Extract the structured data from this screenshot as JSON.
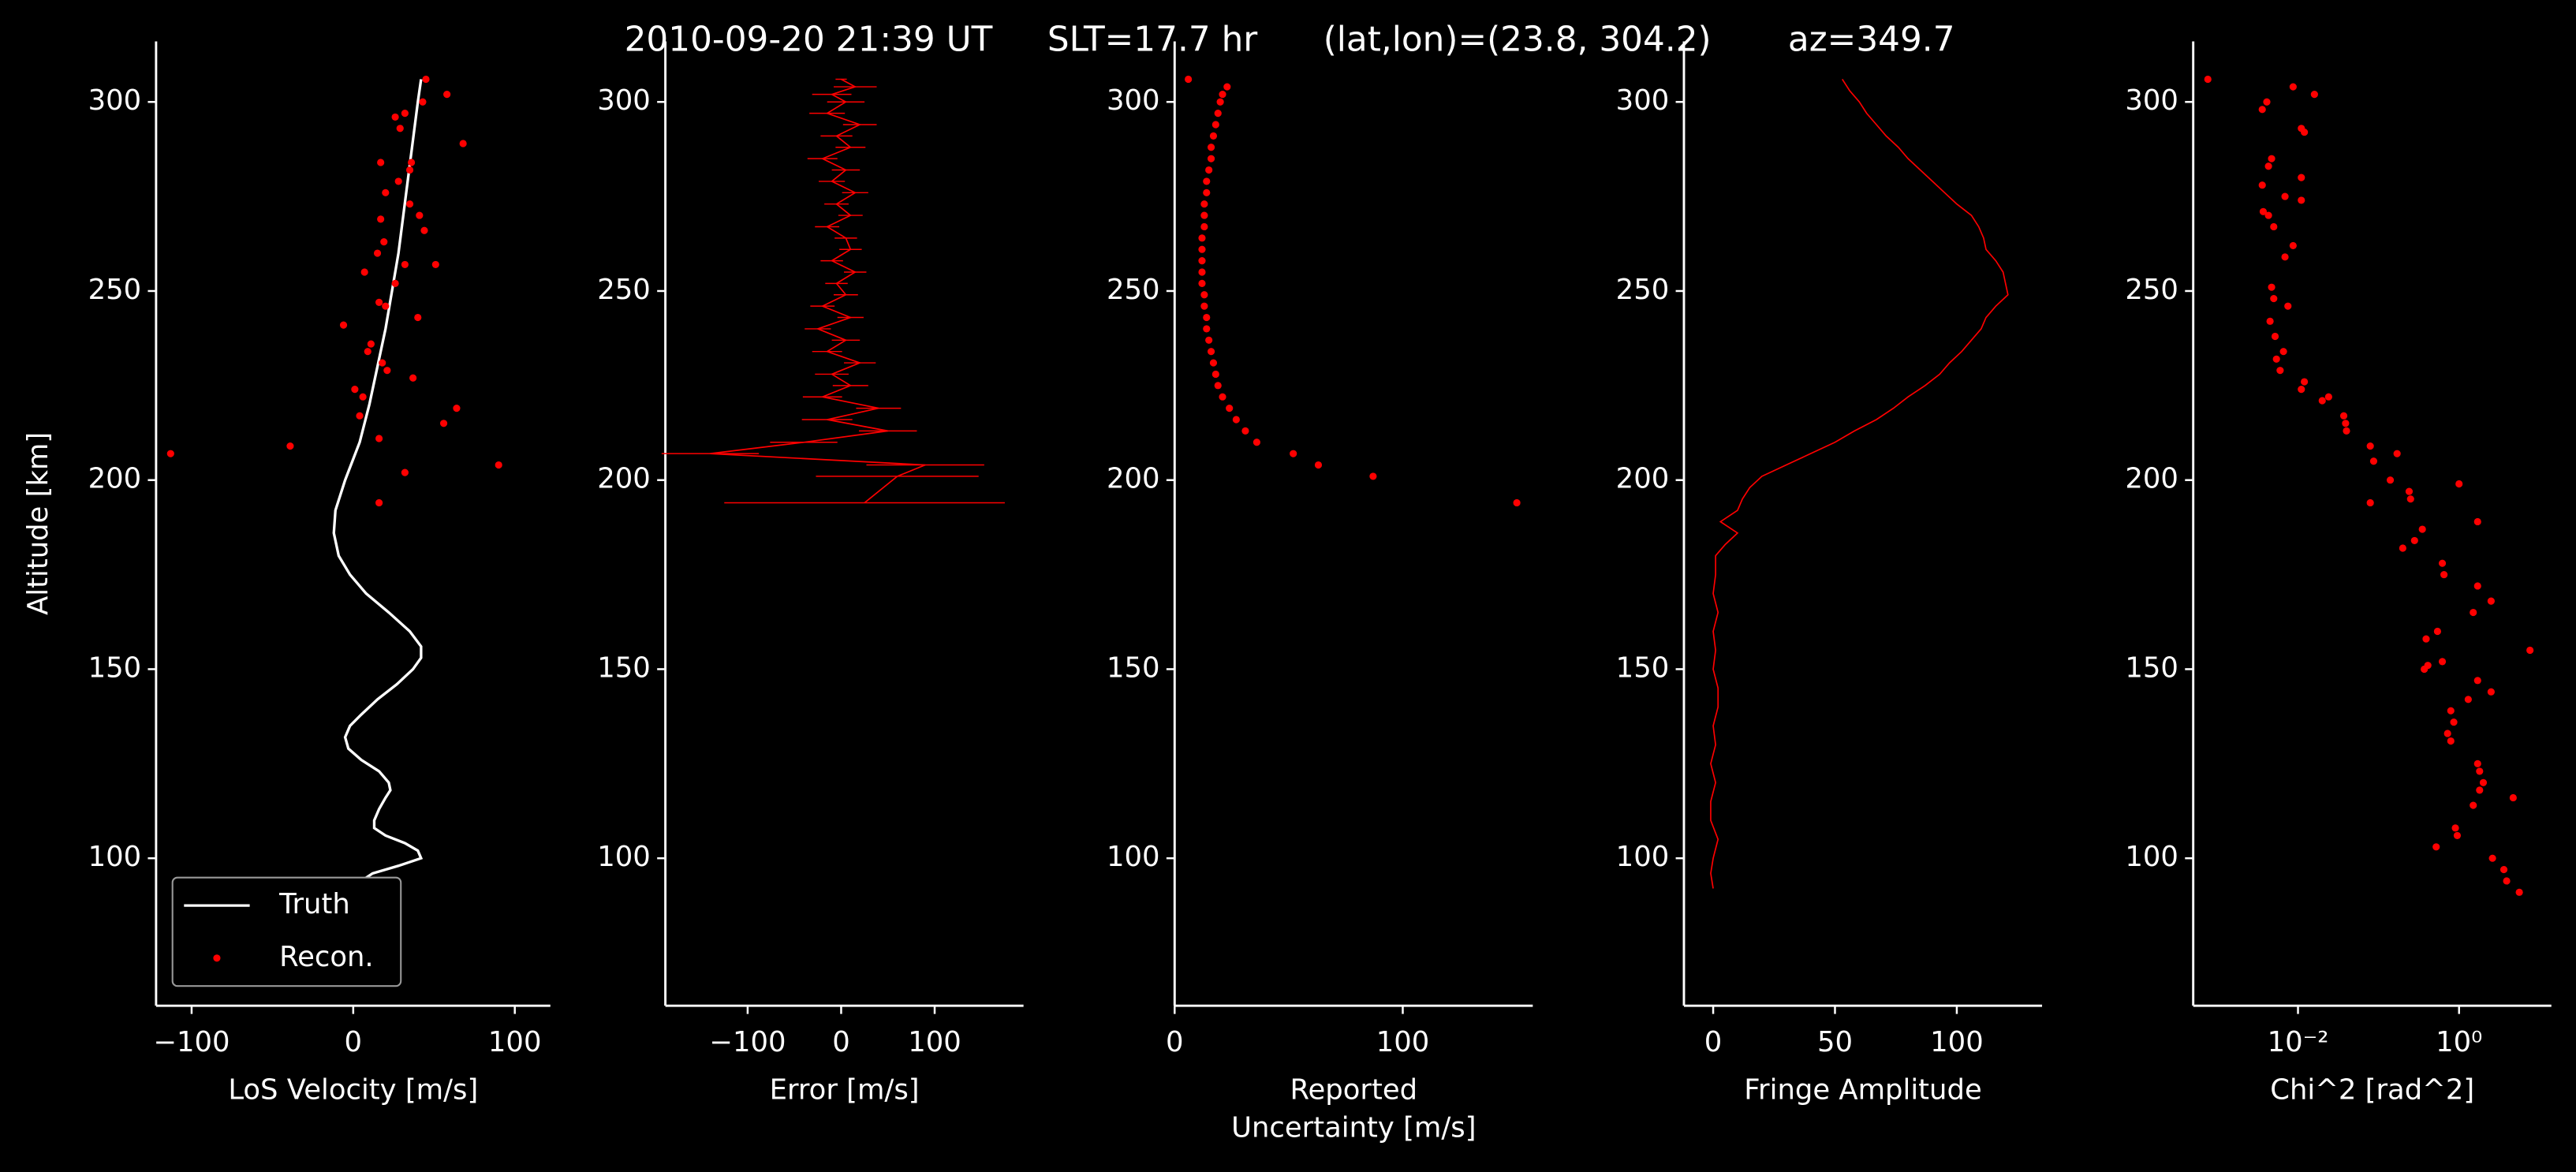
{
  "chart_data": [
    {
      "type": "line",
      "title": "2010-09-20 21:39 UT     SLT=17.7 hr      (lat,lon)=(23.8, 304.2)       az=349.7",
      "xlabel": "LoS Velocity [m/s]",
      "ylabel": "Altitude [km]",
      "xlim": [
        -122,
        122
      ],
      "ylim": [
        61,
        316
      ],
      "xticks": [
        {
          "value": -100,
          "label": "−100"
        },
        0,
        100
      ],
      "yticks": [
        100,
        150,
        200,
        250,
        300
      ],
      "legend": "lower left",
      "series": [
        {
          "name": "Truth",
          "style": "line",
          "color": "#ffffff",
          "x": [
            42,
            40,
            37,
            34,
            31,
            28,
            24,
            20,
            15,
            10,
            4,
            -5,
            -11,
            -12,
            -9,
            -2,
            8,
            22,
            35,
            42,
            42,
            37,
            27,
            15,
            5,
            -2,
            -5,
            -3,
            5,
            16,
            22,
            23,
            20,
            16,
            13,
            13,
            20,
            32,
            40,
            42,
            28,
            12,
            5,
            8
          ],
          "y": [
            306,
            300,
            290,
            280,
            270,
            260,
            250,
            240,
            230,
            220,
            210,
            200,
            192,
            186,
            180,
            175,
            170,
            165,
            160,
            156,
            153,
            150,
            146,
            142,
            138,
            135,
            132,
            129,
            126,
            123,
            120,
            118,
            116,
            113,
            110,
            108,
            106,
            104,
            102,
            100,
            98,
            96,
            94,
            93
          ]
        },
        {
          "name": "Recon.",
          "style": "marker",
          "color": "#ff0000",
          "x": [
            45,
            58,
            43,
            32,
            26,
            29,
            68,
            36,
            17,
            35,
            28,
            20,
            35,
            41,
            17,
            44,
            19,
            15,
            32,
            51,
            7,
            26,
            20,
            40,
            16,
            -6,
            11,
            9,
            18,
            21,
            37,
            1,
            6,
            4,
            64,
            56,
            16,
            -39,
            -113,
            90,
            32,
            16
          ],
          "y": [
            306,
            302,
            300,
            297,
            296,
            293,
            289,
            284,
            284,
            282,
            279,
            276,
            273,
            270,
            269,
            266,
            263,
            260,
            257,
            257,
            255,
            252,
            246,
            243,
            247,
            241,
            236,
            234,
            231,
            229,
            227,
            224,
            222,
            217,
            219,
            215,
            211,
            209,
            207,
            204,
            202,
            194
          ]
        }
      ]
    },
    {
      "type": "errorbar",
      "xlabel": "Error [m/s]",
      "xlim": [
        -188,
        195
      ],
      "ylim": [
        61,
        316
      ],
      "xticks": [
        {
          "value": -100,
          "label": "−100"
        },
        0,
        100
      ],
      "yticks": [
        100,
        150,
        200,
        250,
        300
      ],
      "series": [
        {
          "color": "#ff0000",
          "x": [
            0,
            15,
            -10,
            5,
            -15,
            20,
            -5,
            10,
            -20,
            5,
            -10,
            15,
            -5,
            10,
            -15,
            5,
            10,
            -10,
            15,
            -5,
            5,
            -20,
            10,
            -25,
            5,
            -15,
            20,
            -10,
            10,
            -20,
            40,
            -15,
            50,
            -40,
            -140,
            90,
            60,
            25
          ],
          "xerr": [
            6,
            23,
            21,
            20,
            19,
            18,
            17,
            16,
            16,
            15,
            14,
            14,
            13,
            13,
            13,
            12,
            12,
            12,
            12,
            12,
            13,
            13,
            14,
            14,
            15,
            16,
            17,
            18,
            19,
            21,
            24,
            27,
            31,
            36,
            52,
            63,
            87,
            150
          ],
          "y": [
            306,
            304,
            302,
            300,
            297,
            294,
            291,
            288,
            285,
            282,
            279,
            276,
            273,
            270,
            267,
            264,
            261,
            258,
            255,
            252,
            249,
            246,
            243,
            240,
            237,
            234,
            231,
            228,
            225,
            222,
            219,
            216,
            213,
            210,
            207,
            204,
            201,
            194
          ]
        }
      ]
    },
    {
      "type": "scatter",
      "xlabel": [
        "Reported",
        "Uncertainty [m/s]"
      ],
      "xlim": [
        0,
        157
      ],
      "ylim": [
        61,
        316
      ],
      "xticks": [
        0,
        100
      ],
      "yticks": [
        100,
        150,
        200,
        250,
        300
      ],
      "series": [
        {
          "color": "#ff0000",
          "x": [
            6,
            23,
            21,
            20,
            19,
            18,
            17,
            16,
            16,
            15,
            14,
            14,
            13,
            13,
            13,
            12,
            12,
            12,
            12,
            12,
            13,
            13,
            14,
            14,
            15,
            16,
            17,
            18,
            19,
            21,
            24,
            27,
            31,
            36,
            52,
            63,
            87,
            150
          ],
          "y": [
            306,
            304,
            302,
            300,
            297,
            294,
            291,
            288,
            285,
            282,
            279,
            276,
            273,
            270,
            267,
            264,
            261,
            258,
            255,
            252,
            249,
            246,
            243,
            240,
            237,
            234,
            231,
            228,
            225,
            222,
            219,
            216,
            213,
            210,
            207,
            204,
            201,
            194
          ]
        }
      ]
    },
    {
      "type": "line",
      "xlabel": "Fringe Amplitude",
      "xlim": [
        -12,
        135
      ],
      "ylim": [
        61,
        316
      ],
      "xticks": [
        0,
        50,
        100
      ],
      "yticks": [
        100,
        150,
        200,
        250,
        300
      ],
      "series": [
        {
          "style": "line",
          "color": "#ff0000",
          "x": [
            53,
            56,
            60,
            63,
            67,
            71,
            76,
            80,
            85,
            90,
            95,
            100,
            106,
            109,
            111,
            112,
            116,
            119,
            120,
            121,
            116,
            112,
            110,
            106,
            102,
            97,
            93,
            87,
            80,
            74,
            67,
            58,
            50,
            40,
            30,
            20,
            15,
            12,
            10,
            3,
            10,
            5,
            1,
            1,
            0,
            2,
            0,
            1,
            0,
            2,
            2,
            0,
            1,
            -1,
            1,
            -1,
            -1,
            2,
            0,
            -1,
            0
          ],
          "y": [
            306,
            303,
            300,
            297,
            294,
            291,
            288,
            285,
            282,
            279,
            276,
            273,
            270,
            267,
            264,
            261,
            258,
            255,
            252,
            249,
            246,
            243,
            240,
            237,
            234,
            231,
            228,
            225,
            222,
            219,
            216,
            213,
            210,
            207,
            204,
            201,
            198,
            195,
            192,
            189,
            186,
            183,
            180,
            175,
            170,
            165,
            160,
            155,
            150,
            145,
            140,
            135,
            130,
            125,
            120,
            115,
            110,
            105,
            100,
            96,
            92
          ]
        }
      ]
    },
    {
      "type": "scatter",
      "xlabel": "Chi^2 [rad^2]",
      "xscale": "log",
      "xlim": [
        0.0005,
        14
      ],
      "ylim": [
        61,
        316
      ],
      "xticks": [
        {
          "value": 0.01,
          "label": "10⁻²"
        },
        {
          "value": 1,
          "label": "10⁰"
        }
      ],
      "yticks": [
        100,
        150,
        200,
        250,
        300
      ],
      "series": [
        {
          "color": "#ff0000",
          "x": [
            0.00076,
            0.0087,
            0.016,
            0.0041,
            0.0036,
            0.011,
            0.012,
            0.0047,
            0.0043,
            0.011,
            0.0036,
            0.0069,
            0.011,
            0.0037,
            0.0043,
            0.005,
            0.0087,
            0.0069,
            0.0047,
            0.005,
            0.0075,
            0.0045,
            0.0052,
            0.0066,
            0.0054,
            0.006,
            0.012,
            0.011,
            0.024,
            0.02,
            0.037,
            0.039,
            0.04,
            0.079,
            0.17,
            0.087,
            0.14,
            1.0,
            0.24,
            0.25,
            0.079,
            1.7,
            0.35,
            0.28,
            0.2,
            0.62,
            0.65,
            1.7,
            2.5,
            1.5,
            0.54,
            0.39,
            7.6,
            0.41,
            0.62,
            0.37,
            1.7,
            2.5,
            1.3,
            0.79,
            0.86,
            0.72,
            0.79,
            1.7,
            1.8,
            2.0,
            1.8,
            4.7,
            1.5,
            0.9,
            0.95,
            0.52,
            2.6,
            3.6,
            3.9,
            5.6
          ],
          "y": [
            306,
            304,
            302,
            300,
            298,
            293,
            292,
            285,
            283,
            280,
            278,
            275,
            274,
            271,
            270,
            267,
            262,
            259,
            251,
            248,
            246,
            242,
            238,
            234,
            232,
            229,
            226,
            224,
            222,
            221,
            217,
            215,
            213,
            209,
            207,
            205,
            200,
            199,
            197,
            195,
            194,
            189,
            187,
            184,
            182,
            178,
            175,
            172,
            168,
            165,
            160,
            158,
            155,
            151,
            152,
            150,
            147,
            144,
            142,
            139,
            136,
            133,
            131,
            125,
            123,
            120,
            118,
            116,
            114,
            108,
            106,
            103,
            100,
            97,
            94,
            91
          ]
        }
      ]
    }
  ]
}
